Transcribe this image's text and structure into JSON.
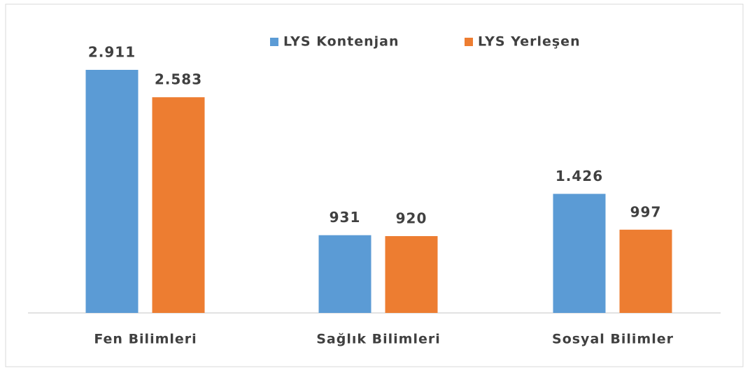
{
  "chart_data": {
    "type": "bar",
    "categories": [
      "Fen Bilimleri",
      "Sağlık Bilimleri",
      "Sosyal Bilimler"
    ],
    "series": [
      {
        "name": "LYS Kontenjan",
        "color": "#5b9bd5",
        "values": [
          2911,
          931,
          1426
        ],
        "value_labels": [
          "2.911",
          "931",
          "1.426"
        ]
      },
      {
        "name": "LYS Yerleşen",
        "color": "#ed7d31",
        "values": [
          2583,
          920,
          997
        ],
        "value_labels": [
          "2.583",
          "920",
          "997"
        ]
      }
    ],
    "legend": "top"
  }
}
